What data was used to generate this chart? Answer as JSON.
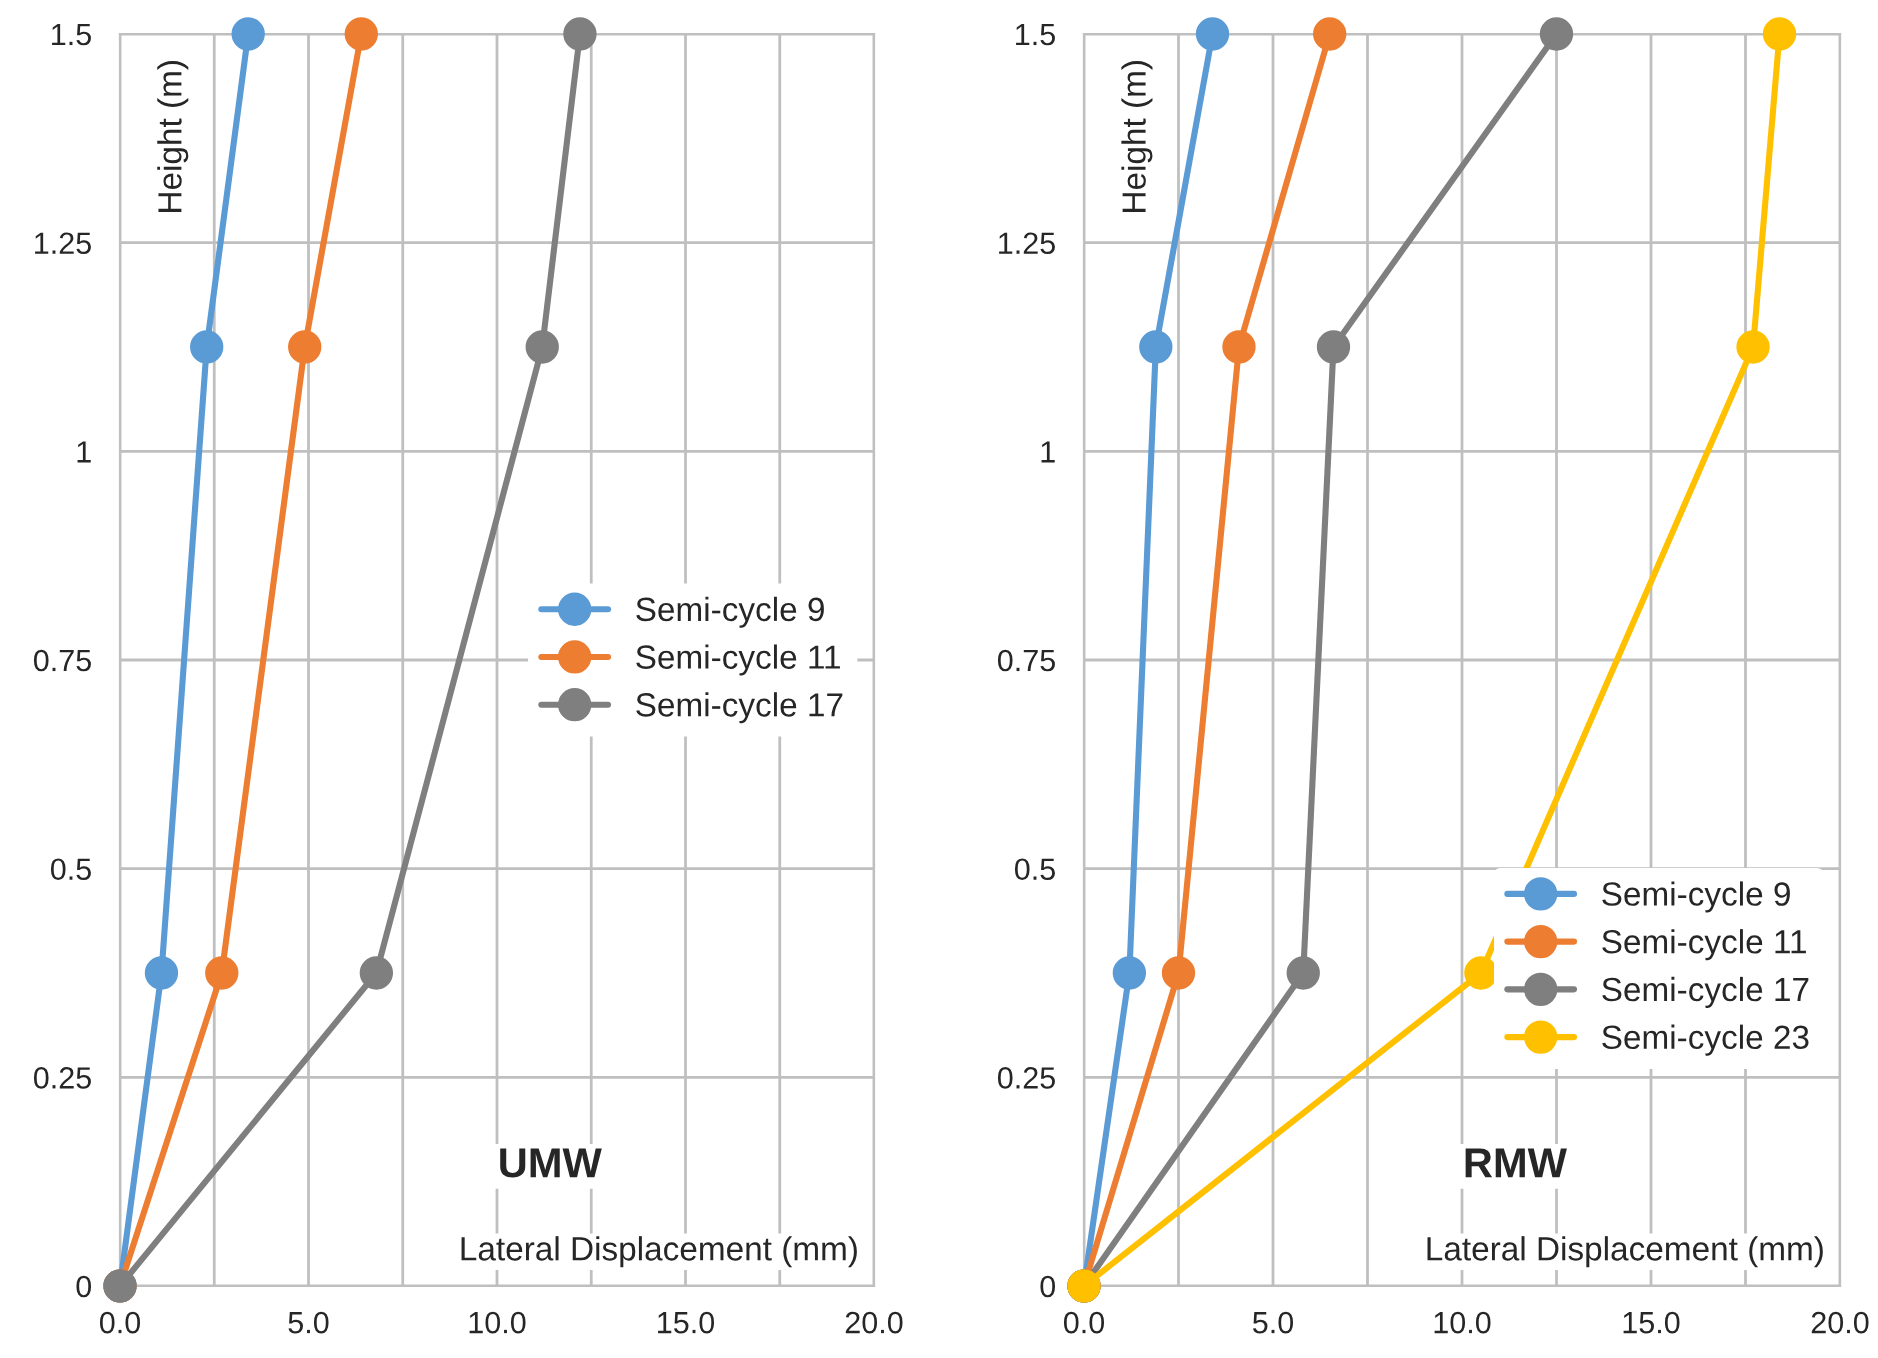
{
  "chart_data": [
    {
      "type": "line",
      "title": "UMW",
      "xlabel": "Lateral Displacement (mm)",
      "ylabel": "Height (m)",
      "xlim": [
        0,
        20
      ],
      "ylim": [
        0,
        1.5
      ],
      "xticks": [
        {
          "value": 0,
          "label": "0.0"
        },
        {
          "value": 2.5,
          "label": null
        },
        {
          "value": 5,
          "label": "5.0"
        },
        {
          "value": 7.5,
          "label": null
        },
        {
          "value": 10,
          "label": "10.0"
        },
        {
          "value": 12.5,
          "label": null
        },
        {
          "value": 15,
          "label": "15.0"
        },
        {
          "value": 17.5,
          "label": null
        },
        {
          "value": 20,
          "label": "20.0"
        }
      ],
      "yticks": [
        0,
        0.25,
        0.5,
        0.75,
        1,
        1.25,
        1.5
      ],
      "grid": true,
      "legend": "center right",
      "marker": "circle",
      "line_style": "solid",
      "series": [
        {
          "name": "Semi-cycle 9",
          "color": "#5b9bd5",
          "x": [
            0,
            1.1,
            2.3,
            3.4
          ],
          "values": [
            0,
            0.375,
            1.125,
            1.5
          ]
        },
        {
          "name": "Semi-cycle 11",
          "color": "#ed7d31",
          "x": [
            0,
            2.7,
            4.9,
            6.4
          ],
          "values": [
            0,
            0.375,
            1.125,
            1.5
          ]
        },
        {
          "name": "Semi-cycle 17",
          "color": "#7f7f7f",
          "x": [
            0,
            6.8,
            11.2,
            12.2
          ],
          "values": [
            0,
            0.375,
            1.125,
            1.5
          ]
        }
      ]
    },
    {
      "type": "line",
      "title": "RMW",
      "xlabel": "Lateral Displacement (mm)",
      "ylabel": "Height (m)",
      "xlim": [
        0,
        20
      ],
      "ylim": [
        0,
        1.5
      ],
      "xticks": [
        {
          "value": 0,
          "label": "0.0"
        },
        {
          "value": 2.5,
          "label": null
        },
        {
          "value": 5,
          "label": "5.0"
        },
        {
          "value": 7.5,
          "label": null
        },
        {
          "value": 10,
          "label": "10.0"
        },
        {
          "value": 12.5,
          "label": null
        },
        {
          "value": 15,
          "label": "15.0"
        },
        {
          "value": 17.5,
          "label": null
        },
        {
          "value": 20,
          "label": "20.0"
        }
      ],
      "yticks": [
        0,
        0.25,
        0.5,
        0.75,
        1,
        1.25,
        1.5
      ],
      "grid": true,
      "legend": "bottom right",
      "marker": "circle",
      "line_style": "solid",
      "series": [
        {
          "name": "Semi-cycle 9",
          "color": "#5b9bd5",
          "x": [
            0,
            1.2,
            1.9,
            3.4
          ],
          "values": [
            0,
            0.375,
            1.125,
            1.5
          ]
        },
        {
          "name": "Semi-cycle 11",
          "color": "#ed7d31",
          "x": [
            0,
            2.5,
            4.1,
            6.5
          ],
          "values": [
            0,
            0.375,
            1.125,
            1.5
          ]
        },
        {
          "name": "Semi-cycle 17",
          "color": "#7f7f7f",
          "x": [
            0,
            5.8,
            6.6,
            12.5
          ],
          "values": [
            0,
            0.375,
            1.125,
            1.5
          ]
        },
        {
          "name": "Semi-cycle 23",
          "color": "#ffc000",
          "x": [
            0,
            10.5,
            17.7,
            18.4
          ],
          "values": [
            0,
            0.375,
            1.125,
            1.5
          ]
        }
      ]
    }
  ]
}
